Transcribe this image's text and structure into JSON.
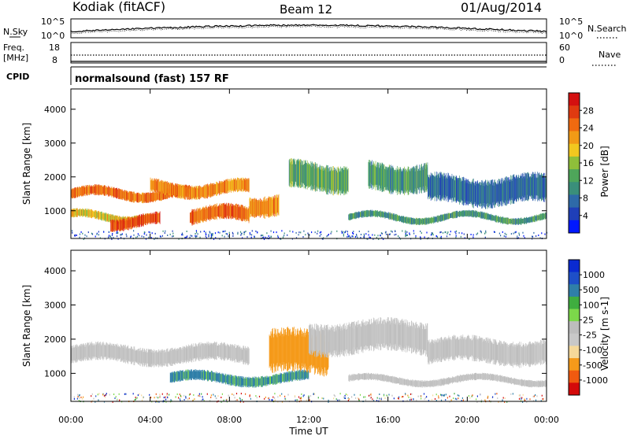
{
  "header": {
    "station": "Kodiak (fitACF)",
    "beam": "Beam 12",
    "date": "01/Aug/2014"
  },
  "aux_panels": {
    "nsky_label": "N.Sky",
    "nsky_ticks": [
      "10^5",
      "10^0"
    ],
    "nsearch_label": "N.Search",
    "nsearch_ticks": [
      "10^5",
      "10^0"
    ],
    "freq_label_1": "Freq.",
    "freq_label_2": "[MHz]",
    "freq_ticks": [
      "18",
      "8"
    ],
    "nave_label": "Nave",
    "nave_ticks": [
      "60",
      "0"
    ],
    "cpid_label": "CPID",
    "cpid_text": "normalsound (fast) 157 RF"
  },
  "colors": {
    "power": [
      "#0018ff",
      "#1f3fb8",
      "#2e6aa8",
      "#3a8f7a",
      "#4ea65a",
      "#8fbf3a",
      "#f2c81f",
      "#f29a16",
      "#f06a10",
      "#e03a10",
      "#d41010"
    ],
    "velocity": [
      "#d40a0a",
      "#f05a10",
      "#f59a1a",
      "#f6d99a",
      "#c8c8c8",
      "#bdbdbd",
      "#7cd84a",
      "#3fae3f",
      "#2f7fa8",
      "#1e4fc8",
      "#0a2ad0"
    ]
  },
  "chart_data": [
    {
      "type": "heatmap",
      "title": "Power",
      "xlabel": "Time UT",
      "ylabel": "Slant Range [km]",
      "x_ticks": [
        "00:00",
        "04:00",
        "08:00",
        "12:00",
        "16:00",
        "20:00",
        "00:00"
      ],
      "xlim_hours": [
        0,
        24
      ],
      "y_ticks": [
        "1000",
        "2000",
        "3000",
        "4000"
      ],
      "ylim_km": [
        180,
        4600
      ],
      "colorbar_label": "Power [dB]",
      "colorbar_ticks": [
        "28",
        "24",
        "20",
        "16",
        "12",
        "8",
        "4"
      ],
      "colorbar_range_db": [
        0,
        30
      ],
      "echo_bands": [
        {
          "t0": 0,
          "t1": 6,
          "r0": 1350,
          "r1": 1650,
          "level": 24
        },
        {
          "t0": 0,
          "t1": 4,
          "r0": 700,
          "r1": 950,
          "level": 18
        },
        {
          "t0": 2,
          "t1": 4.5,
          "r0": 500,
          "r1": 850,
          "level": 26
        },
        {
          "t0": 4,
          "t1": 9,
          "r0": 1450,
          "r1": 1850,
          "level": 22
        },
        {
          "t0": 6,
          "t1": 9,
          "r0": 650,
          "r1": 1100,
          "level": 24
        },
        {
          "t0": 9,
          "t1": 10.5,
          "r0": 900,
          "r1": 1500,
          "level": 22
        },
        {
          "t0": 11,
          "t1": 14,
          "r0": 1600,
          "r1": 2400,
          "level": 12
        },
        {
          "t0": 14,
          "t1": 24,
          "r0": 700,
          "r1": 900,
          "level": 10
        },
        {
          "t0": 15,
          "t1": 18,
          "r0": 1600,
          "r1": 2400,
          "level": 10
        },
        {
          "t0": 18,
          "t1": 24,
          "r0": 1200,
          "r1": 2000,
          "level": 6
        }
      ]
    },
    {
      "type": "heatmap",
      "title": "Velocity",
      "xlabel": "Time UT",
      "ylabel": "Slant Range [km]",
      "x_ticks": [
        "00:00",
        "04:00",
        "08:00",
        "12:00",
        "16:00",
        "20:00",
        "00:00"
      ],
      "xlim_hours": [
        0,
        24
      ],
      "y_ticks": [
        "1000",
        "2000",
        "3000",
        "4000"
      ],
      "ylim_km": [
        180,
        4600
      ],
      "colorbar_label": "Velocity [m s-1]",
      "colorbar_ticks": [
        "1000",
        "500",
        "100",
        "25",
        "-25",
        "-100",
        "-500",
        "-1000"
      ],
      "echo_bands": [
        {
          "t0": 0,
          "t1": 9,
          "r0": 1300,
          "r1": 1800,
          "velocity": 0
        },
        {
          "t0": 5,
          "t1": 12,
          "r0": 700,
          "r1": 1000,
          "velocity": 150
        },
        {
          "t0": 10,
          "t1": 13,
          "r0": 1000,
          "r1": 2200,
          "velocity": -400
        },
        {
          "t0": 12,
          "t1": 18,
          "r0": 1600,
          "r1": 2500,
          "velocity": 0
        },
        {
          "t0": 14,
          "t1": 24,
          "r0": 700,
          "r1": 900,
          "velocity": 0
        },
        {
          "t0": 18,
          "t1": 24,
          "r0": 1300,
          "r1": 2000,
          "velocity": 0
        }
      ]
    }
  ]
}
